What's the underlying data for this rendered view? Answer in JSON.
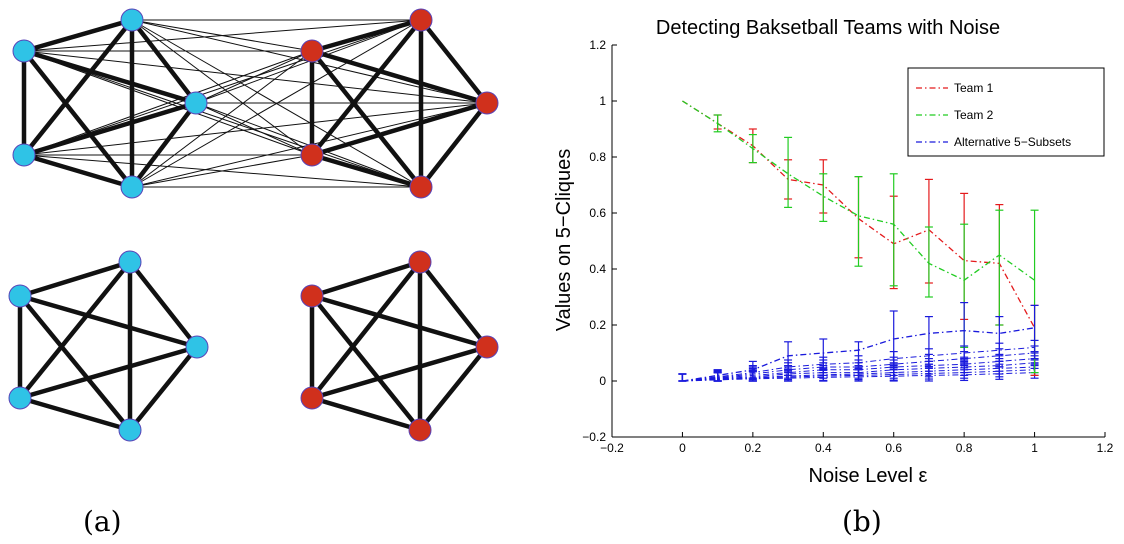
{
  "panels": {
    "a": "(a)",
    "b": "(b)"
  },
  "graph": {
    "colors": {
      "team1": "#d0301c",
      "team2": "#2fc3e6",
      "node_stroke": "#5a44b8",
      "edge": "#111111"
    }
  },
  "chart_data": {
    "type": "line",
    "title": "Detecting Baksetball Teams with Noise",
    "xlabel": "Noise Level ε",
    "ylabel": "Values on 5−Cliques",
    "xlim": [
      -0.2,
      1.2
    ],
    "ylim": [
      -0.2,
      1.2
    ],
    "xticks": [
      "−0.2",
      "0",
      "0.2",
      "0.4",
      "0.6",
      "0.8",
      "1",
      "1.2"
    ],
    "yticks": [
      "−0.2",
      "0",
      "0.2",
      "0.4",
      "0.6",
      "0.8",
      "1",
      "1.2"
    ],
    "grid": false,
    "legend_position": "top-right",
    "x": [
      0,
      0.1,
      0.2,
      0.3,
      0.4,
      0.5,
      0.6,
      0.7,
      0.8,
      0.9,
      1.0
    ],
    "series": [
      {
        "name": "Team 1",
        "color": "#e41a1c",
        "style": "dash-dot",
        "values": [
          1.0,
          0.92,
          0.84,
          0.72,
          0.7,
          0.58,
          0.49,
          0.54,
          0.43,
          0.42,
          0.19
        ],
        "err_low": [
          1.0,
          0.9,
          0.78,
          0.65,
          0.6,
          0.44,
          0.33,
          0.35,
          0.22,
          0.2,
          0.02
        ],
        "err_high": [
          1.0,
          0.95,
          0.9,
          0.79,
          0.79,
          0.73,
          0.66,
          0.72,
          0.67,
          0.63,
          0.27
        ]
      },
      {
        "name": "Team 2",
        "color": "#22cc22",
        "style": "dash-dot",
        "values": [
          1.0,
          0.92,
          0.83,
          0.74,
          0.66,
          0.59,
          0.56,
          0.42,
          0.36,
          0.45,
          0.36
        ],
        "err_low": [
          1.0,
          0.89,
          0.78,
          0.62,
          0.57,
          0.41,
          0.34,
          0.3,
          0.12,
          0.2,
          0.03
        ],
        "err_high": [
          1.0,
          0.95,
          0.88,
          0.87,
          0.74,
          0.73,
          0.74,
          0.55,
          0.56,
          0.61,
          0.61
        ]
      },
      {
        "name": "Alternative 5−Subsets",
        "color": "#1a1adc",
        "style": "dash-dot",
        "values": [
          0.0,
          0.02,
          0.04,
          0.09,
          0.1,
          0.11,
          0.15,
          0.17,
          0.18,
          0.17,
          0.19
        ],
        "err_low": [
          0.0,
          0.0,
          0.01,
          0.02,
          0.03,
          0.04,
          0.05,
          0.06,
          0.07,
          0.07,
          0.08
        ],
        "err_high": [
          0.0,
          0.04,
          0.07,
          0.14,
          0.15,
          0.14,
          0.25,
          0.23,
          0.28,
          0.23,
          0.27
        ]
      }
    ],
    "alternative_curves": [
      [
        0.0,
        0.015,
        0.03,
        0.05,
        0.06,
        0.065,
        0.08,
        0.09,
        0.1,
        0.11,
        0.12
      ],
      [
        0.0,
        0.012,
        0.025,
        0.04,
        0.05,
        0.05,
        0.06,
        0.07,
        0.08,
        0.09,
        0.1
      ],
      [
        0.0,
        0.01,
        0.02,
        0.03,
        0.04,
        0.04,
        0.05,
        0.055,
        0.06,
        0.07,
        0.08
      ],
      [
        0.0,
        0.008,
        0.015,
        0.025,
        0.03,
        0.03,
        0.04,
        0.045,
        0.05,
        0.055,
        0.065
      ],
      [
        0.0,
        0.006,
        0.012,
        0.018,
        0.022,
        0.025,
        0.03,
        0.035,
        0.04,
        0.045,
        0.05
      ],
      [
        0.0,
        0.005,
        0.01,
        0.014,
        0.018,
        0.02,
        0.023,
        0.027,
        0.03,
        0.035,
        0.04
      ],
      [
        0.0,
        0.004,
        0.008,
        0.01,
        0.013,
        0.015,
        0.017,
        0.02,
        0.022,
        0.026,
        0.03
      ]
    ]
  }
}
